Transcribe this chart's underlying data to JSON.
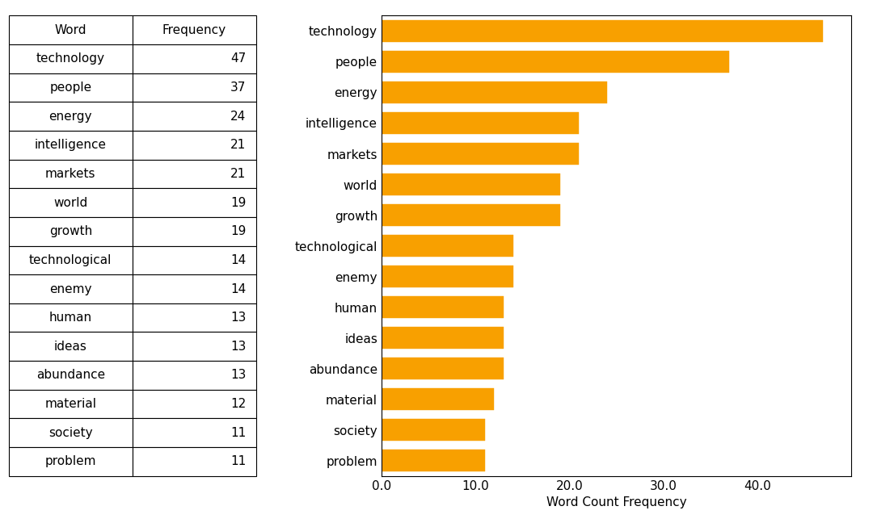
{
  "words": [
    "technology",
    "people",
    "energy",
    "intelligence",
    "markets",
    "world",
    "growth",
    "technological",
    "enemy",
    "human",
    "ideas",
    "abundance",
    "material",
    "society",
    "problem"
  ],
  "frequencies": [
    47,
    37,
    24,
    21,
    21,
    19,
    19,
    14,
    14,
    13,
    13,
    13,
    12,
    11,
    11
  ],
  "bar_color": "#F8A000",
  "xlabel": "Word Count Frequency",
  "table_col_labels": [
    "Word",
    "Frequency"
  ],
  "background_color": "#ffffff",
  "bar_edgecolor": "#F8A000",
  "xlim": [
    0,
    50
  ],
  "xticks": [
    0.0,
    10.0,
    20.0,
    30.0,
    40.0
  ],
  "table_fontsize": 11,
  "chart_fontsize": 11
}
